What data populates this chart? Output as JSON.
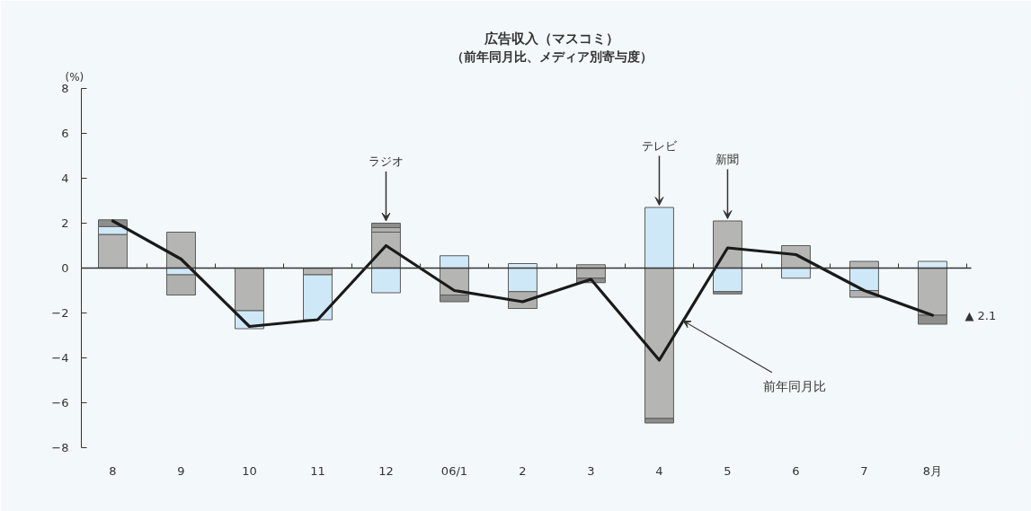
{
  "chart_data": {
    "type": "bar",
    "title": "広告収入（マスコミ）",
    "subtitle": "（前年同月比、メディア別寄与度）",
    "ylabel": "(%)",
    "categories": [
      "8",
      "9",
      "10",
      "11",
      "12",
      "06/1",
      "2",
      "3",
      "4",
      "5",
      "6",
      "7",
      "8月"
    ],
    "stacked": true,
    "ylim": [
      -8,
      8
    ],
    "yticks": [
      -8,
      -6,
      -4,
      -2,
      0,
      2,
      4,
      6,
      8
    ],
    "series": [
      {
        "color": "#d6ebf7",
        "values": [
          null,
          null,
          null,
          null,
          null,
          null,
          0.2,
          null,
          null,
          null,
          null,
          null,
          0.3
        ]
      },
      {
        "color": "#b5b5b3",
        "values": [
          1.5,
          1.6,
          -1.9,
          -0.3,
          1.6,
          -1.2,
          null,
          0.15,
          -6.7,
          2.1,
          1.0,
          0.3,
          -2.1
        ]
      },
      {
        "color": "#cfe8f7",
        "values": [
          0.35,
          -0.3,
          -0.8,
          -2.0,
          -1.1,
          0.55,
          -1.05,
          null,
          2.7,
          -1.05,
          -0.45,
          -1.0,
          null
        ]
      },
      {
        "color": "#b0b0ae",
        "values": [
          null,
          -0.9,
          null,
          null,
          0.2,
          null,
          -0.75,
          -0.45,
          null,
          null,
          null,
          -0.3,
          null
        ]
      },
      {
        "color": "#8e8e8c",
        "values": [
          0.3,
          null,
          null,
          null,
          0.2,
          -0.3,
          null,
          -0.2,
          -0.2,
          -0.1,
          null,
          null,
          -0.4
        ]
      },
      {
        "type": "line",
        "name": "前年同月比",
        "color": "#1a1a1a",
        "values": [
          2.1,
          0.4,
          -2.6,
          -2.3,
          1.0,
          -1.0,
          -1.5,
          -0.5,
          -4.1,
          0.9,
          0.6,
          -1.0,
          -2.1
        ]
      }
    ],
    "annotations": [
      {
        "text": "ラジオ",
        "x": "12",
        "y": 2.0
      },
      {
        "text": "テレビ",
        "x": "4",
        "y": 2.7
      },
      {
        "text": "新聞",
        "x": "5",
        "y": 2.1
      },
      {
        "text": "▲ 2.1",
        "x": "8月",
        "y": -2.1
      }
    ]
  }
}
